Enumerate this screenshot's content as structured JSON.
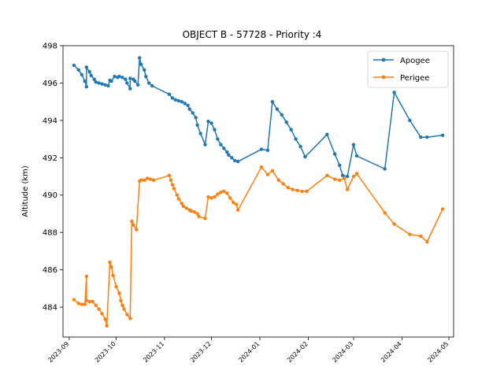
{
  "chart_data": {
    "type": "line",
    "title": "OBJECT B - 57728 - Priority :4",
    "xlabel": "",
    "ylabel": "Altitude (km)",
    "ylim": [
      482.4,
      498.0
    ],
    "xlim": [
      "2023-08-28",
      "2024-05-04"
    ],
    "grid": false,
    "legend_position": "top-right",
    "yticks": [
      484,
      486,
      488,
      490,
      492,
      494,
      496,
      498
    ],
    "xticks": [
      "2023-09-01",
      "2023-10-01",
      "2023-11-01",
      "2023-12-01",
      "2024-01-01",
      "2024-02-01",
      "2024-03-01",
      "2024-04-01",
      "2024-05-01"
    ],
    "xtick_labels": [
      "2023-09",
      "2023-10",
      "2023-11",
      "2023-12",
      "2024-01",
      "2024-02",
      "2024-03",
      "2024-04",
      "2024-05"
    ],
    "series": [
      {
        "name": "Apogee",
        "color": "#1f77b4",
        "points": [
          [
            "2023-09-04",
            496.95
          ],
          [
            "2023-09-07",
            496.7
          ],
          [
            "2023-09-09",
            496.45
          ],
          [
            "2023-09-11",
            496.1
          ],
          [
            "2023-09-12",
            495.8
          ],
          [
            "2023-09-12",
            496.85
          ],
          [
            "2023-09-14",
            496.6
          ],
          [
            "2023-09-15",
            496.4
          ],
          [
            "2023-09-17",
            496.2
          ],
          [
            "2023-09-18",
            496.05
          ],
          [
            "2023-09-20",
            496.0
          ],
          [
            "2023-09-22",
            495.95
          ],
          [
            "2023-09-24",
            495.9
          ],
          [
            "2023-09-26",
            495.85
          ],
          [
            "2023-09-27",
            496.15
          ],
          [
            "2023-09-28",
            496.1
          ],
          [
            "2023-09-30",
            496.35
          ],
          [
            "2023-10-02",
            496.3
          ],
          [
            "2023-10-03",
            496.35
          ],
          [
            "2023-10-05",
            496.3
          ],
          [
            "2023-10-07",
            496.2
          ],
          [
            "2023-10-08",
            496.0
          ],
          [
            "2023-10-10",
            495.7
          ],
          [
            "2023-10-10",
            496.25
          ],
          [
            "2023-10-12",
            496.2
          ],
          [
            "2023-10-13",
            496.1
          ],
          [
            "2023-10-15",
            495.9
          ],
          [
            "2023-10-16",
            497.35
          ],
          [
            "2023-10-17",
            497.0
          ],
          [
            "2023-10-19",
            496.7
          ],
          [
            "2023-10-20",
            496.35
          ],
          [
            "2023-10-22",
            496.0
          ],
          [
            "2023-10-24",
            495.85
          ],
          [
            "2023-11-04",
            495.4
          ],
          [
            "2023-11-06",
            495.2
          ],
          [
            "2023-11-08",
            495.1
          ],
          [
            "2023-11-10",
            495.05
          ],
          [
            "2023-11-12",
            495.0
          ],
          [
            "2023-11-14",
            494.9
          ],
          [
            "2023-11-16",
            494.8
          ],
          [
            "2023-11-17",
            494.6
          ],
          [
            "2023-11-19",
            494.4
          ],
          [
            "2023-11-21",
            494.15
          ],
          [
            "2023-11-22",
            493.75
          ],
          [
            "2023-11-24",
            493.3
          ],
          [
            "2023-11-27",
            492.7
          ],
          [
            "2023-11-29",
            493.95
          ],
          [
            "2023-12-01",
            493.85
          ],
          [
            "2023-12-03",
            493.5
          ],
          [
            "2023-12-05",
            493.0
          ],
          [
            "2023-12-07",
            492.7
          ],
          [
            "2023-12-09",
            492.5
          ],
          [
            "2023-12-11",
            492.3
          ],
          [
            "2023-12-12",
            492.15
          ],
          [
            "2023-12-14",
            492.0
          ],
          [
            "2023-12-16",
            491.85
          ],
          [
            "2023-12-18",
            491.8
          ],
          [
            "2024-01-02",
            492.45
          ],
          [
            "2024-01-06",
            492.4
          ],
          [
            "2024-01-09",
            495.0
          ],
          [
            "2024-01-12",
            494.6
          ],
          [
            "2024-01-15",
            494.3
          ],
          [
            "2024-01-18",
            493.9
          ],
          [
            "2024-01-21",
            493.5
          ],
          [
            "2024-01-24",
            493.0
          ],
          [
            "2024-01-27",
            492.6
          ],
          [
            "2024-01-30",
            492.05
          ],
          [
            "2024-02-13",
            493.25
          ],
          [
            "2024-02-18",
            492.2
          ],
          [
            "2024-02-21",
            491.6
          ],
          [
            "2024-02-23",
            491.05
          ],
          [
            "2024-02-26",
            491.0
          ],
          [
            "2024-03-01",
            492.7
          ],
          [
            "2024-03-03",
            492.1
          ],
          [
            "2024-03-21",
            491.4
          ],
          [
            "2024-03-27",
            495.5
          ],
          [
            "2024-04-06",
            494.0
          ],
          [
            "2024-04-13",
            493.1
          ],
          [
            "2024-04-17",
            493.1
          ],
          [
            "2024-04-27",
            493.2
          ]
        ]
      },
      {
        "name": "Perigee",
        "color": "#ff7f0e",
        "points": [
          [
            "2023-09-04",
            484.4
          ],
          [
            "2023-09-07",
            484.2
          ],
          [
            "2023-09-09",
            484.15
          ],
          [
            "2023-09-11",
            484.15
          ],
          [
            "2023-09-12",
            485.65
          ],
          [
            "2023-09-12",
            484.35
          ],
          [
            "2023-09-14",
            484.3
          ],
          [
            "2023-09-16",
            484.3
          ],
          [
            "2023-09-18",
            484.1
          ],
          [
            "2023-09-20",
            483.9
          ],
          [
            "2023-09-22",
            483.65
          ],
          [
            "2023-09-24",
            483.35
          ],
          [
            "2023-09-25",
            483.0
          ],
          [
            "2023-09-27",
            486.4
          ],
          [
            "2023-09-28",
            486.15
          ],
          [
            "2023-09-29",
            485.7
          ],
          [
            "2023-10-01",
            485.1
          ],
          [
            "2023-10-03",
            484.75
          ],
          [
            "2023-10-04",
            484.35
          ],
          [
            "2023-10-05",
            484.1
          ],
          [
            "2023-10-06",
            483.9
          ],
          [
            "2023-10-08",
            483.6
          ],
          [
            "2023-10-10",
            483.4
          ],
          [
            "2023-10-11",
            488.6
          ],
          [
            "2023-10-12",
            488.4
          ],
          [
            "2023-10-14",
            488.15
          ],
          [
            "2023-10-16",
            490.75
          ],
          [
            "2023-10-17",
            490.8
          ],
          [
            "2023-10-19",
            490.8
          ],
          [
            "2023-10-21",
            490.9
          ],
          [
            "2023-10-23",
            490.85
          ],
          [
            "2023-10-25",
            490.8
          ],
          [
            "2023-11-04",
            491.05
          ],
          [
            "2023-11-05",
            490.8
          ],
          [
            "2023-11-06",
            490.55
          ],
          [
            "2023-11-07",
            490.35
          ],
          [
            "2023-11-09",
            490.0
          ],
          [
            "2023-11-10",
            489.8
          ],
          [
            "2023-11-12",
            489.55
          ],
          [
            "2023-11-13",
            489.4
          ],
          [
            "2023-11-15",
            489.3
          ],
          [
            "2023-11-17",
            489.2
          ],
          [
            "2023-11-18",
            489.15
          ],
          [
            "2023-11-20",
            489.1
          ],
          [
            "2023-11-22",
            489.0
          ],
          [
            "2023-11-23",
            488.85
          ],
          [
            "2023-11-27",
            488.75
          ],
          [
            "2023-11-29",
            489.9
          ],
          [
            "2023-12-01",
            489.85
          ],
          [
            "2023-12-03",
            489.9
          ],
          [
            "2023-12-05",
            490.05
          ],
          [
            "2023-12-07",
            490.15
          ],
          [
            "2023-12-09",
            490.2
          ],
          [
            "2023-12-11",
            490.1
          ],
          [
            "2023-12-13",
            489.85
          ],
          [
            "2023-12-15",
            489.6
          ],
          [
            "2023-12-17",
            489.5
          ],
          [
            "2023-12-18",
            489.2
          ],
          [
            "2024-01-02",
            491.5
          ],
          [
            "2024-01-06",
            491.1
          ],
          [
            "2024-01-09",
            491.3
          ],
          [
            "2024-01-13",
            490.8
          ],
          [
            "2024-01-16",
            490.6
          ],
          [
            "2024-01-19",
            490.4
          ],
          [
            "2024-01-22",
            490.3
          ],
          [
            "2024-01-25",
            490.25
          ],
          [
            "2024-01-28",
            490.2
          ],
          [
            "2024-01-31",
            490.2
          ],
          [
            "2024-02-13",
            491.05
          ],
          [
            "2024-02-18",
            490.85
          ],
          [
            "2024-02-21",
            490.8
          ],
          [
            "2024-02-24",
            490.9
          ],
          [
            "2024-02-26",
            490.3
          ],
          [
            "2024-03-01",
            491.0
          ],
          [
            "2024-03-03",
            491.15
          ],
          [
            "2024-03-21",
            489.05
          ],
          [
            "2024-03-27",
            488.45
          ],
          [
            "2024-04-06",
            487.9
          ],
          [
            "2024-04-13",
            487.8
          ],
          [
            "2024-04-17",
            487.5
          ],
          [
            "2024-04-27",
            489.25
          ]
        ]
      }
    ]
  }
}
